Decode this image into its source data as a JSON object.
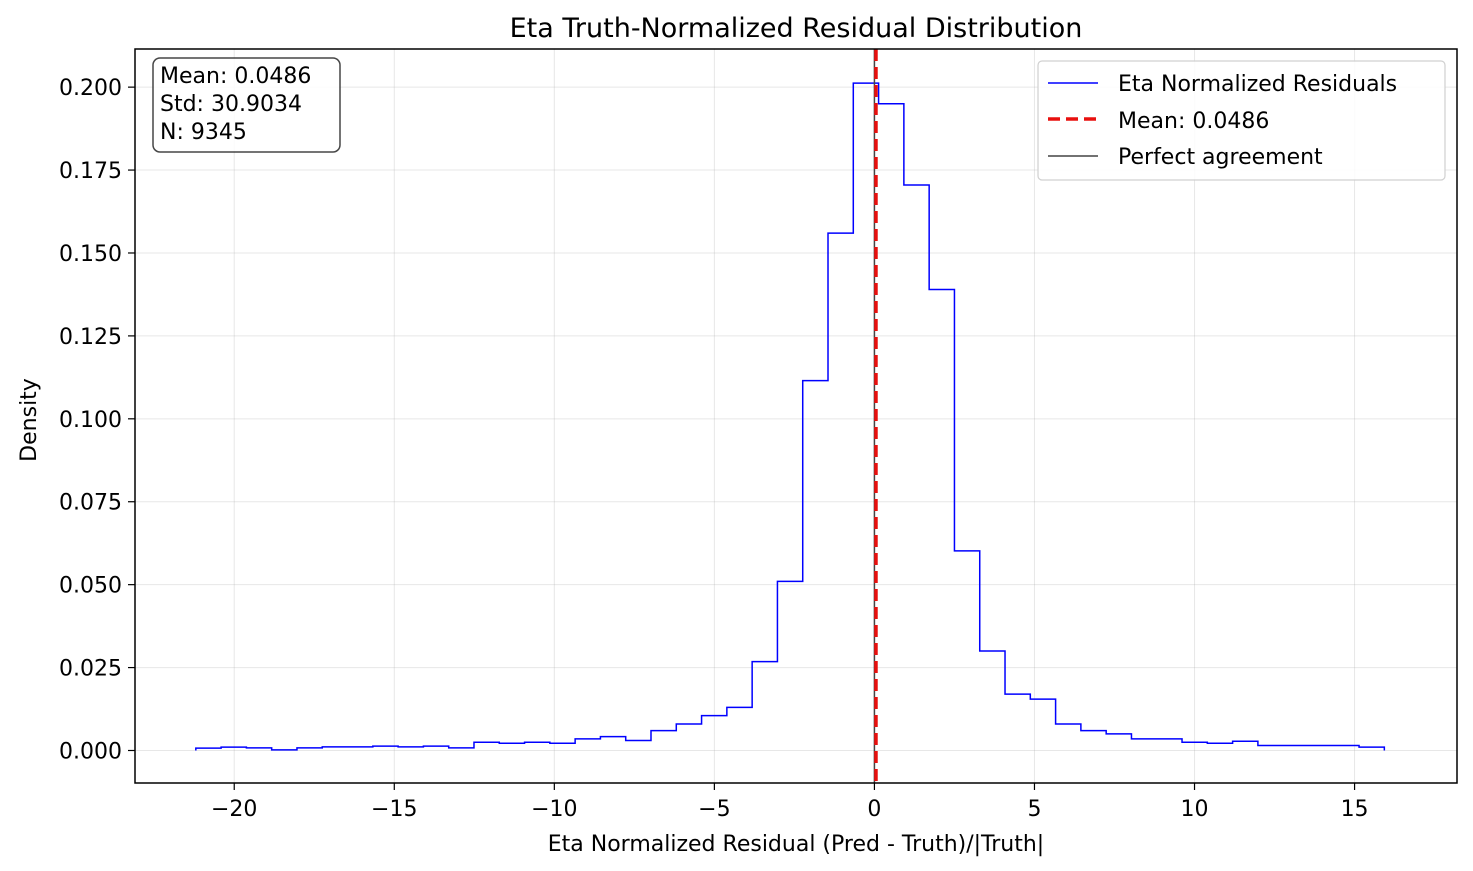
{
  "chart_data": {
    "type": "histogram",
    "title": "Eta Truth-Normalized Residual Distribution",
    "xlabel": "Eta Normalized Residual (Pred - Truth)/|Truth|",
    "ylabel": "Density",
    "xlim": [
      -23.1,
      18.2
    ],
    "ylim": [
      -0.0098,
      0.2115
    ],
    "xticks": [
      -20,
      -15,
      -10,
      -5,
      0,
      5,
      10,
      15
    ],
    "xtick_labels": [
      "−20",
      "−15",
      "−10",
      "−5",
      "0",
      "5",
      "10",
      "15"
    ],
    "yticks": [
      0.0,
      0.025,
      0.05,
      0.075,
      0.1,
      0.125,
      0.15,
      0.175,
      0.2
    ],
    "ytick_labels": [
      "0.000",
      "0.025",
      "0.050",
      "0.075",
      "0.100",
      "0.125",
      "0.150",
      "0.175",
      "0.200"
    ],
    "grid": true,
    "series": [
      {
        "name": "Eta Normalized Residuals",
        "style": "step",
        "color": "#0000ff",
        "bin_edges": [
          -21.2,
          -20.41,
          -19.62,
          -18.83,
          -18.04,
          -17.25,
          -16.46,
          -15.67,
          -14.88,
          -14.09,
          -13.3,
          -12.51,
          -11.72,
          -10.93,
          -10.14,
          -9.35,
          -8.56,
          -7.77,
          -6.98,
          -6.19,
          -5.4,
          -4.61,
          -3.82,
          -3.03,
          -2.24,
          -1.45,
          -0.66,
          0.13,
          0.92,
          1.71,
          2.5,
          3.29,
          4.08,
          4.87,
          5.66,
          6.45,
          7.24,
          8.03,
          8.82,
          9.61,
          10.4,
          11.19,
          11.98,
          12.77,
          13.56,
          14.35,
          15.14,
          15.93
        ],
        "values": [
          0.0007,
          0.001,
          0.0008,
          0.0002,
          0.0008,
          0.0011,
          0.0011,
          0.0013,
          0.0011,
          0.0013,
          0.0008,
          0.0025,
          0.0022,
          0.0025,
          0.0022,
          0.0035,
          0.0042,
          0.003,
          0.006,
          0.008,
          0.0105,
          0.013,
          0.0268,
          0.051,
          0.1115,
          0.156,
          0.2012,
          0.195,
          0.1705,
          0.139,
          0.0602,
          0.03,
          0.017,
          0.0155,
          0.008,
          0.006,
          0.005,
          0.0035,
          0.0035,
          0.0025,
          0.0022,
          0.0028,
          0.0015,
          0.0015,
          0.0015,
          0.0015,
          0.001
        ]
      },
      {
        "name": "Mean: 0.0486",
        "style": "vline-dashed",
        "color": "#e8100e",
        "x": 0.0486
      },
      {
        "name": "Perfect agreement",
        "style": "vline",
        "color": "#444444",
        "x": 0
      }
    ],
    "legend": {
      "placement": "top-right",
      "entries": [
        "Eta Normalized Residuals",
        "Mean: 0.0486",
        "Perfect agreement"
      ]
    },
    "stats_box": {
      "placement": "top-left",
      "lines": [
        "Mean: 0.0486",
        "Std: 30.9034",
        "N: 9345"
      ]
    }
  }
}
